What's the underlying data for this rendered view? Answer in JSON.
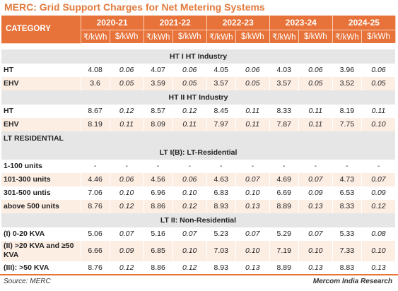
{
  "title": "MERC: Grid Support Charges for Net Metering Systems",
  "header": {
    "category": "CATEGORY",
    "years": [
      "2020-21",
      "2021-22",
      "2022-23",
      "2023-24",
      "2024-25"
    ],
    "unit_inr": "₹/kWh",
    "unit_usd": "$/kWh"
  },
  "sections": {
    "s1": "HT I HT Industry",
    "s2": "HT II HT Industry",
    "s3": "LT RESIDENTIAL",
    "s4": "LT I(B): LT-Residential",
    "s5": "LT II: Non-Residential"
  },
  "rows": [
    {
      "label": "HT",
      "values": [
        "4.08",
        "0.06",
        "4.07",
        "0.06",
        "4.05",
        "0.06",
        "4.03",
        "0.06",
        "3.96",
        "0.06"
      ]
    },
    {
      "label": "EHV",
      "values": [
        "3.6",
        "0.05",
        "3.59",
        "0.05",
        "3.57",
        "0.05",
        "3.57",
        "0.05",
        "3.52",
        "0.05"
      ]
    },
    {
      "label": "HT",
      "values": [
        "8.67",
        "0.12",
        "8.57",
        "0.12",
        "8.45",
        "0.11",
        "8.33",
        "0.11",
        "8.19",
        "0.11"
      ]
    },
    {
      "label": "EHV",
      "values": [
        "8.19",
        "0.11",
        "8.09",
        "0.11",
        "7.97",
        "0.11",
        "7.87",
        "0.11",
        "7.75",
        "0.10"
      ]
    },
    {
      "label": "1-100 units",
      "values": [
        "-",
        "-",
        "-",
        "-",
        "-",
        "-",
        "-",
        "-",
        "-",
        "-"
      ]
    },
    {
      "label": "101-300 units",
      "values": [
        "4.46",
        "0.06",
        "4.56",
        "0.06",
        "4.63",
        "0.07",
        "4.69",
        "0.07",
        "4.73",
        "0.07"
      ]
    },
    {
      "label": "301-500 untis",
      "values": [
        "7.06",
        "0.10",
        "6.96",
        "0.10",
        "6.83",
        "0.10",
        "6.69",
        "0.09",
        "6.53",
        "0.09"
      ]
    },
    {
      "label": "above 500 units",
      "values": [
        "8.76",
        "0.12",
        "8.86",
        "0.12",
        "8.93",
        "0.13",
        "8.89",
        "0.13",
        "8.33",
        "0.12"
      ]
    },
    {
      "label": "(I) 0-20 KVA",
      "values": [
        "5.06",
        "0.07",
        "5.16",
        "0.07",
        "5.23",
        "0.07",
        "5.29",
        "0.07",
        "5.33",
        "0.08"
      ]
    },
    {
      "label": "(II) >20 KVA and ≥50 KVA",
      "values": [
        "6.66",
        "0.09",
        "6.85",
        "0.10",
        "7.03",
        "0.10",
        "7.19",
        "0.10",
        "7.33",
        "0.10"
      ]
    },
    {
      "label": "(III): >50 KVA",
      "values": [
        "8.76",
        "0.12",
        "8.86",
        "0.12",
        "8.93",
        "0.13",
        "8.89",
        "0.13",
        "8.83",
        "0.13"
      ]
    }
  ],
  "footer": {
    "source": "Source: MERC",
    "credit": "Mercom India Research"
  },
  "colors": {
    "accent": "#e8733a",
    "title": "#e27a3c",
    "section_bg": "#e6e6e6",
    "alt_row": "#fdeee4"
  }
}
